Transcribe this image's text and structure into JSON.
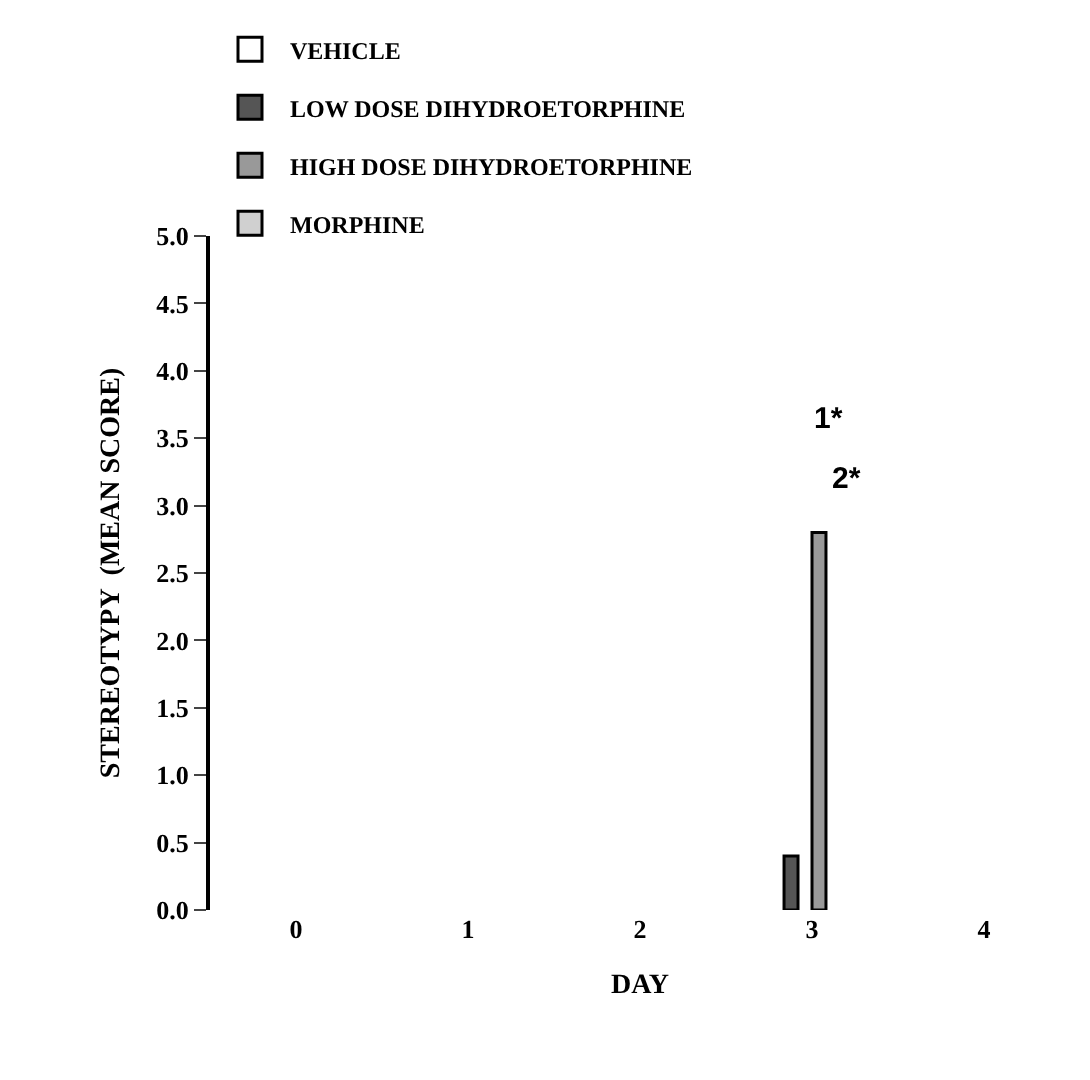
{
  "chart_data": {
    "type": "bar",
    "xlabel": "DAY",
    "ylabel": "STEREOTYPY  (MEAN SCORE)",
    "categories": [
      "0",
      "1",
      "2",
      "3",
      "4"
    ],
    "series": [
      {
        "name": "VEHICLE",
        "color": "#ffffff",
        "values": [
          0,
          0,
          0,
          0,
          0
        ]
      },
      {
        "name": "LOW DOSE DIHYDROETORPHINE",
        "color": "#555555",
        "values": [
          0,
          0,
          0,
          0.4,
          0
        ]
      },
      {
        "name": "HIGH DOSE DIHYDROETORPHINE",
        "color": "#999999",
        "values": [
          0,
          0,
          0,
          2.8,
          0
        ]
      },
      {
        "name": "MORPHINE",
        "color": "#d0d0d0",
        "values": [
          0,
          0,
          0,
          0,
          0
        ]
      }
    ],
    "ylim": [
      0,
      5
    ],
    "yticks": [
      {
        "value": 0,
        "label": "0.0"
      },
      {
        "value": 0.5,
        "label": "0.5"
      },
      {
        "value": 1,
        "label": "1.0"
      },
      {
        "value": 1.5,
        "label": "1.5"
      },
      {
        "value": 2,
        "label": "2.0"
      },
      {
        "value": 2.5,
        "label": "2.5"
      },
      {
        "value": 3,
        "label": "3.0"
      },
      {
        "value": 3.5,
        "label": "3.5"
      },
      {
        "value": 4,
        "label": "4.0"
      },
      {
        "value": 4.5,
        "label": "4.5"
      },
      {
        "value": 5,
        "label": "5.0"
      }
    ],
    "annotations": [
      "1*",
      "2*"
    ],
    "legend": "top left"
  }
}
